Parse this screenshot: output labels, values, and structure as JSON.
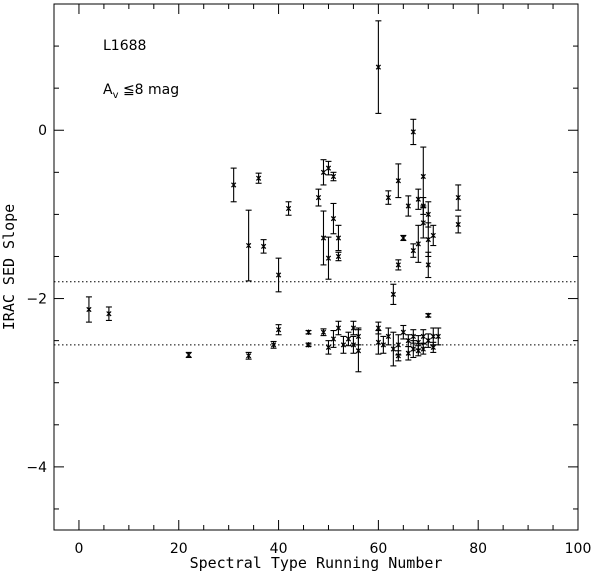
{
  "chart_data": {
    "type": "scatter",
    "title": "",
    "xlabel": "Spectral Type Running Number",
    "ylabel": "IRAC SED Slope",
    "xlim": [
      -5,
      100
    ],
    "ylim": [
      -4.75,
      1.5
    ],
    "xticks": [
      0,
      20,
      40,
      60,
      80,
      100
    ],
    "yticks": [
      -4,
      -2,
      0
    ],
    "xtick_labels": [
      "0",
      "20",
      "40",
      "60",
      "80",
      "100"
    ],
    "ytick_labels": [
      "−4",
      "−2",
      "0"
    ],
    "hlines": [
      -1.8,
      -2.55
    ],
    "annotations": {
      "region": "L1688",
      "av_prefix": "A",
      "av_subscript": "v",
      "av_suffix": " ≦8 mag"
    },
    "grid": false,
    "marker": "asterisk",
    "points": [
      {
        "x": 2,
        "y": -2.13,
        "err": 0.15
      },
      {
        "x": 6,
        "y": -2.18,
        "err": 0.08
      },
      {
        "x": 22,
        "y": -2.67,
        "err": 0.03
      },
      {
        "x": 31,
        "y": -0.65,
        "err": 0.2
      },
      {
        "x": 34,
        "y": -1.37,
        "err": 0.42
      },
      {
        "x": 34,
        "y": -2.68,
        "err": 0.04
      },
      {
        "x": 36,
        "y": -0.57,
        "err": 0.06
      },
      {
        "x": 37,
        "y": -1.38,
        "err": 0.08
      },
      {
        "x": 39,
        "y": -2.55,
        "err": 0.04
      },
      {
        "x": 40,
        "y": -2.37,
        "err": 0.06
      },
      {
        "x": 40,
        "y": -1.72,
        "err": 0.2
      },
      {
        "x": 42,
        "y": -0.93,
        "err": 0.08
      },
      {
        "x": 46,
        "y": -2.4,
        "err": 0.02
      },
      {
        "x": 46,
        "y": -2.55,
        "err": 0.02
      },
      {
        "x": 48,
        "y": -0.8,
        "err": 0.1
      },
      {
        "x": 49,
        "y": -1.28,
        "err": 0.32
      },
      {
        "x": 49,
        "y": -0.5,
        "err": 0.15
      },
      {
        "x": 49,
        "y": -2.4,
        "err": 0.04
      },
      {
        "x": 50,
        "y": -0.45,
        "err": 0.08
      },
      {
        "x": 50,
        "y": -1.52,
        "err": 0.25
      },
      {
        "x": 50,
        "y": -2.58,
        "err": 0.08
      },
      {
        "x": 51,
        "y": -0.55,
        "err": 0.05
      },
      {
        "x": 51,
        "y": -1.05,
        "err": 0.18
      },
      {
        "x": 51,
        "y": -2.48,
        "err": 0.1
      },
      {
        "x": 52,
        "y": -1.28,
        "err": 0.15
      },
      {
        "x": 52,
        "y": -1.5,
        "err": 0.05
      },
      {
        "x": 52,
        "y": -2.35,
        "err": 0.08
      },
      {
        "x": 53,
        "y": -2.55,
        "err": 0.1
      },
      {
        "x": 54,
        "y": -2.48,
        "err": 0.08
      },
      {
        "x": 55,
        "y": -2.55,
        "err": 0.1
      },
      {
        "x": 55,
        "y": -2.35,
        "err": 0.08
      },
      {
        "x": 56,
        "y": -2.45,
        "err": 0.1
      },
      {
        "x": 56,
        "y": -2.62,
        "err": 0.25
      },
      {
        "x": 60,
        "y": 0.75,
        "err": 0.55
      },
      {
        "x": 60,
        "y": -2.52,
        "err": 0.14
      },
      {
        "x": 60,
        "y": -2.35,
        "err": 0.07
      },
      {
        "x": 61,
        "y": -2.55,
        "err": 0.1
      },
      {
        "x": 62,
        "y": -0.8,
        "err": 0.08
      },
      {
        "x": 62,
        "y": -2.45,
        "err": 0.1
      },
      {
        "x": 63,
        "y": -1.95,
        "err": 0.12
      },
      {
        "x": 63,
        "y": -2.6,
        "err": 0.2
      },
      {
        "x": 64,
        "y": -0.6,
        "err": 0.2
      },
      {
        "x": 64,
        "y": -1.6,
        "err": 0.06
      },
      {
        "x": 64,
        "y": -2.55,
        "err": 0.12
      },
      {
        "x": 64,
        "y": -2.68,
        "err": 0.06
      },
      {
        "x": 65,
        "y": -1.28,
        "err": 0.03
      },
      {
        "x": 65,
        "y": -2.4,
        "err": 0.08
      },
      {
        "x": 66,
        "y": -0.9,
        "err": 0.12
      },
      {
        "x": 66,
        "y": -2.5,
        "err": 0.07
      },
      {
        "x": 66,
        "y": -2.65,
        "err": 0.08
      },
      {
        "x": 67,
        "y": -0.02,
        "err": 0.15
      },
      {
        "x": 67,
        "y": -1.43,
        "err": 0.08
      },
      {
        "x": 67,
        "y": -2.45,
        "err": 0.08
      },
      {
        "x": 67,
        "y": -2.6,
        "err": 0.1
      },
      {
        "x": 68,
        "y": -0.82,
        "err": 0.12
      },
      {
        "x": 68,
        "y": -1.35,
        "err": 0.22
      },
      {
        "x": 68,
        "y": -2.52,
        "err": 0.08
      },
      {
        "x": 68,
        "y": -2.62,
        "err": 0.06
      },
      {
        "x": 69,
        "y": -0.55,
        "err": 0.35
      },
      {
        "x": 69,
        "y": -0.9,
        "err": 0.1
      },
      {
        "x": 69,
        "y": -1.1,
        "err": 0.18
      },
      {
        "x": 69,
        "y": -2.45,
        "err": 0.08
      },
      {
        "x": 69,
        "y": -2.6,
        "err": 0.06
      },
      {
        "x": 70,
        "y": -1.0,
        "err": 0.15
      },
      {
        "x": 70,
        "y": -1.3,
        "err": 0.2
      },
      {
        "x": 70,
        "y": -1.6,
        "err": 0.15
      },
      {
        "x": 70,
        "y": -2.2,
        "err": 0.02
      },
      {
        "x": 70,
        "y": -2.5,
        "err": 0.08
      },
      {
        "x": 71,
        "y": -1.25,
        "err": 0.12
      },
      {
        "x": 71,
        "y": -2.45,
        "err": 0.1
      },
      {
        "x": 71,
        "y": -2.58,
        "err": 0.06
      },
      {
        "x": 72,
        "y": -2.45,
        "err": 0.1
      },
      {
        "x": 76,
        "y": -0.8,
        "err": 0.15
      },
      {
        "x": 76,
        "y": -1.12,
        "err": 0.1
      }
    ]
  }
}
